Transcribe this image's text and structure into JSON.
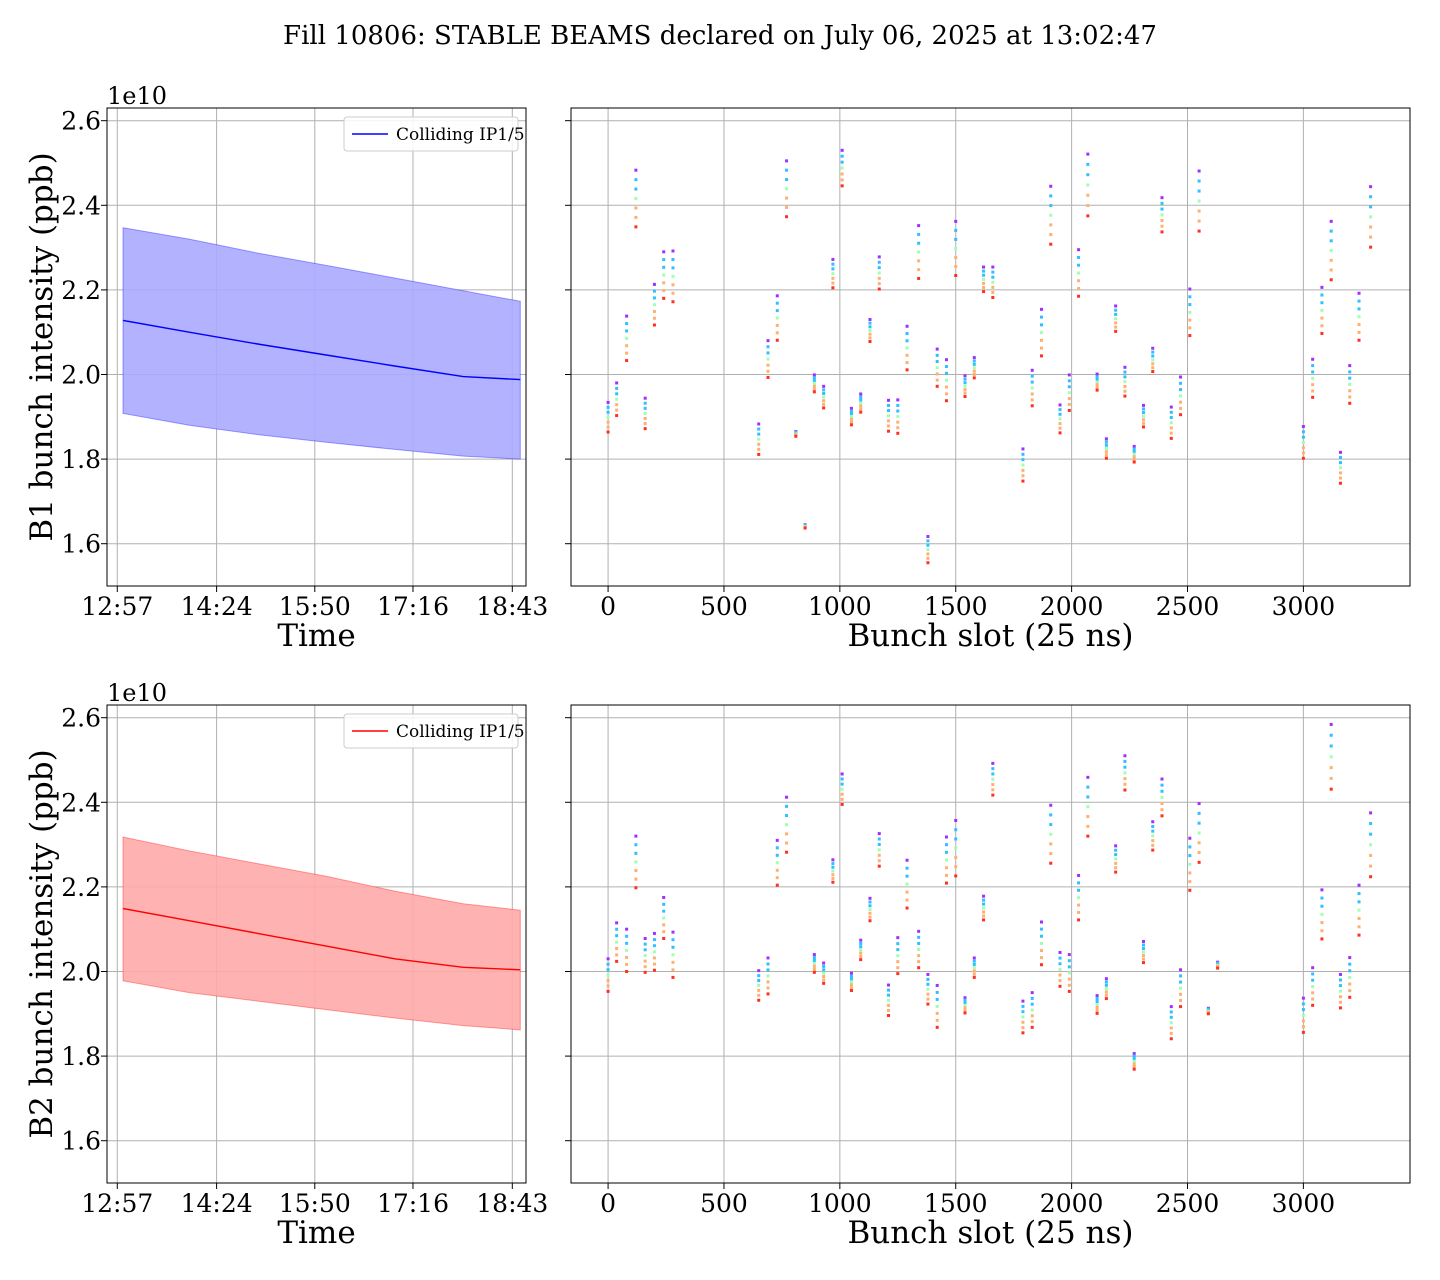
{
  "figure": {
    "title": "Fill 10806: STABLE BEAMS declared on July 06, 2025 at 13:02:47",
    "colors": {
      "b1": "#0000ff",
      "b1_fill": "#aaaaff",
      "b2": "#ff0000",
      "b2_fill": "#ffaaaa",
      "grid": "#b0b0b0"
    }
  },
  "chart_data": [
    {
      "id": "b1_time",
      "type": "area",
      "xlabel": "Time",
      "ylabel": "B1 bunch intensity (ppb)",
      "offset_text": "1e10",
      "xticks": [
        "12:57",
        "14:24",
        "15:50",
        "17:16",
        "18:43"
      ],
      "xlim": [
        "12:48",
        "18:55"
      ],
      "ylim": [
        1.5,
        2.63
      ],
      "yticks": [
        "1.6",
        "1.8",
        "2.0",
        "2.2",
        "2.4",
        "2.6"
      ],
      "legend": "Colliding IP1/5",
      "legend_position": "upper right",
      "x": [
        "13:02",
        "14:00",
        "15:00",
        "16:00",
        "17:00",
        "18:00",
        "18:50"
      ],
      "mean": [
        2.128,
        2.1,
        2.072,
        2.046,
        2.02,
        1.995,
        1.988
      ],
      "upper": [
        2.347,
        2.32,
        2.287,
        2.258,
        2.228,
        2.198,
        2.173
      ],
      "lower": [
        1.908,
        1.88,
        1.858,
        1.84,
        1.823,
        1.807,
        1.8
      ]
    },
    {
      "id": "b1_slot",
      "type": "scatter",
      "xlabel": "Bunch slot (25 ns)",
      "xlim": [
        -160,
        3460
      ],
      "ylim": [
        1.5,
        2.63
      ],
      "xticks": [
        "0",
        "500",
        "1000",
        "1500",
        "2000",
        "2500",
        "3000"
      ],
      "yticks": [
        "1.6",
        "1.8",
        "2.0",
        "2.2",
        "2.4",
        "2.6"
      ],
      "series_colors": [
        "#a030ff",
        "#30c0ff",
        "#a0ffb0",
        "#ffb070",
        "#ff3020"
      ],
      "points": [
        [
          0,
          1.934,
          1.864
        ],
        [
          37,
          1.98,
          1.903
        ],
        [
          80,
          2.138,
          2.033
        ],
        [
          120,
          2.483,
          2.349
        ],
        [
          160,
          1.944,
          1.872
        ],
        [
          200,
          2.213,
          2.117
        ],
        [
          240,
          2.29,
          2.18
        ],
        [
          280,
          2.292,
          2.172
        ],
        [
          650,
          1.883,
          1.811
        ],
        [
          690,
          2.08,
          1.993
        ],
        [
          730,
          2.186,
          2.081
        ],
        [
          770,
          2.505,
          2.373
        ],
        [
          810,
          1.865,
          1.854
        ],
        [
          850,
          1.645,
          1.637
        ],
        [
          890,
          1.999,
          1.959
        ],
        [
          930,
          1.972,
          1.921
        ],
        [
          970,
          2.272,
          2.205
        ],
        [
          1010,
          2.53,
          2.446
        ],
        [
          1050,
          1.92,
          1.881
        ],
        [
          1090,
          1.954,
          1.911
        ],
        [
          1130,
          2.13,
          2.078
        ],
        [
          1170,
          2.278,
          2.202
        ],
        [
          1210,
          1.939,
          1.866
        ],
        [
          1250,
          1.94,
          1.861
        ],
        [
          1290,
          2.114,
          2.011
        ],
        [
          1340,
          2.352,
          2.227
        ],
        [
          1380,
          1.617,
          1.555
        ],
        [
          1420,
          2.06,
          1.972
        ],
        [
          1460,
          2.035,
          1.938
        ],
        [
          1500,
          2.362,
          2.234
        ],
        [
          1540,
          1.997,
          1.948
        ],
        [
          1580,
          2.04,
          1.992
        ],
        [
          1620,
          2.254,
          2.196
        ],
        [
          1660,
          2.254,
          2.182
        ],
        [
          1790,
          1.824,
          1.748
        ],
        [
          1830,
          2.01,
          1.926
        ],
        [
          1870,
          2.154,
          2.044
        ],
        [
          1910,
          2.445,
          2.308
        ],
        [
          1950,
          1.928,
          1.862
        ],
        [
          1990,
          1.999,
          1.915
        ],
        [
          2030,
          2.295,
          2.185
        ],
        [
          2070,
          2.521,
          2.375
        ],
        [
          2110,
          2.001,
          1.963
        ],
        [
          2150,
          1.848,
          1.802
        ],
        [
          2190,
          2.162,
          2.102
        ],
        [
          2230,
          2.017,
          1.949
        ],
        [
          2270,
          1.83,
          1.793
        ],
        [
          2310,
          1.927,
          1.876
        ],
        [
          2350,
          2.062,
          2.007
        ],
        [
          2390,
          2.418,
          2.337
        ],
        [
          2430,
          1.923,
          1.849
        ],
        [
          2470,
          1.994,
          1.905
        ],
        [
          2510,
          2.202,
          2.092
        ],
        [
          2550,
          2.481,
          2.339
        ],
        [
          3000,
          1.877,
          1.802
        ],
        [
          3040,
          2.036,
          1.946
        ],
        [
          3080,
          2.206,
          2.097
        ],
        [
          3120,
          2.362,
          2.224
        ],
        [
          3160,
          1.816,
          1.743
        ],
        [
          3200,
          2.021,
          1.932
        ],
        [
          3240,
          2.192,
          2.081
        ],
        [
          3290,
          2.444,
          2.301
        ]
      ]
    },
    {
      "id": "b2_time",
      "type": "area",
      "xlabel": "Time",
      "ylabel": "B2 bunch intensity (ppb)",
      "offset_text": "1e10",
      "xticks": [
        "12:57",
        "14:24",
        "15:50",
        "17:16",
        "18:43"
      ],
      "xlim": [
        "12:48",
        "18:55"
      ],
      "ylim": [
        1.5,
        2.63
      ],
      "yticks": [
        "1.6",
        "1.8",
        "2.0",
        "2.2",
        "2.4",
        "2.6"
      ],
      "legend": "Colliding IP1/5",
      "legend_position": "upper right",
      "x": [
        "13:02",
        "14:00",
        "15:00",
        "16:00",
        "17:00",
        "18:00",
        "18:50"
      ],
      "mean": [
        2.149,
        2.12,
        2.09,
        2.06,
        2.03,
        2.01,
        2.004
      ],
      "upper": [
        2.318,
        2.285,
        2.255,
        2.225,
        2.19,
        2.16,
        2.145
      ],
      "lower": [
        1.978,
        1.95,
        1.93,
        1.91,
        1.89,
        1.872,
        1.862
      ]
    },
    {
      "id": "b2_slot",
      "type": "scatter",
      "xlabel": "Bunch slot (25 ns)",
      "xlim": [
        -160,
        3460
      ],
      "ylim": [
        1.5,
        2.63
      ],
      "xticks": [
        "0",
        "500",
        "1000",
        "1500",
        "2000",
        "2500",
        "3000"
      ],
      "yticks": [
        "1.6",
        "1.8",
        "2.0",
        "2.2",
        "2.4",
        "2.6"
      ],
      "series_colors": [
        "#a030ff",
        "#30c0ff",
        "#a0ffb0",
        "#ffb070",
        "#ff3020"
      ],
      "points": [
        [
          0,
          2.03,
          1.953
        ],
        [
          37,
          2.115,
          2.024
        ],
        [
          80,
          2.1,
          2.0
        ],
        [
          120,
          2.32,
          2.198
        ],
        [
          160,
          2.078,
          1.998
        ],
        [
          200,
          2.09,
          2.003
        ],
        [
          240,
          2.175,
          2.078
        ],
        [
          280,
          2.093,
          1.986
        ],
        [
          650,
          2.002,
          1.932
        ],
        [
          690,
          2.032,
          1.947
        ],
        [
          730,
          2.31,
          2.204
        ],
        [
          770,
          2.412,
          2.282
        ],
        [
          890,
          2.04,
          1.998
        ],
        [
          930,
          2.02,
          1.972
        ],
        [
          970,
          2.264,
          2.211
        ],
        [
          1010,
          2.467,
          2.395
        ],
        [
          1050,
          1.996,
          1.955
        ],
        [
          1090,
          2.074,
          2.028
        ],
        [
          1130,
          2.173,
          2.12
        ],
        [
          1170,
          2.326,
          2.249
        ],
        [
          1210,
          1.968,
          1.896
        ],
        [
          1250,
          2.08,
          1.995
        ],
        [
          1290,
          2.263,
          2.15
        ],
        [
          1340,
          2.095,
          2.009
        ],
        [
          1380,
          1.993,
          1.923
        ],
        [
          1420,
          1.967,
          1.868
        ],
        [
          1460,
          2.318,
          2.209
        ],
        [
          1500,
          2.357,
          2.226
        ],
        [
          1540,
          1.938,
          1.902
        ],
        [
          1580,
          2.032,
          1.986
        ],
        [
          1620,
          2.178,
          2.122
        ],
        [
          1660,
          2.492,
          2.417
        ],
        [
          1790,
          1.93,
          1.855
        ],
        [
          1830,
          1.95,
          1.868
        ],
        [
          1870,
          2.117,
          2.016
        ],
        [
          1910,
          2.393,
          2.256
        ],
        [
          1950,
          2.045,
          1.965
        ],
        [
          1990,
          2.04,
          1.953
        ],
        [
          2030,
          2.227,
          2.122
        ],
        [
          2070,
          2.459,
          2.32
        ],
        [
          2110,
          1.943,
          1.901
        ],
        [
          2150,
          1.983,
          1.936
        ],
        [
          2190,
          2.297,
          2.235
        ],
        [
          2230,
          2.51,
          2.429
        ],
        [
          2270,
          1.806,
          1.769
        ],
        [
          2310,
          2.071,
          2.021
        ],
        [
          2350,
          2.354,
          2.287
        ],
        [
          2390,
          2.455,
          2.368
        ],
        [
          2430,
          1.917,
          1.841
        ],
        [
          2470,
          2.004,
          1.917
        ],
        [
          2510,
          2.315,
          2.192
        ],
        [
          2550,
          2.397,
          2.258
        ],
        [
          2590,
          1.913,
          1.9
        ],
        [
          2630,
          2.022,
          2.008
        ],
        [
          3000,
          1.937,
          1.856
        ],
        [
          3040,
          2.009,
          1.92
        ],
        [
          3080,
          2.193,
          2.077
        ],
        [
          3120,
          2.584,
          2.431
        ],
        [
          3160,
          1.993,
          1.914
        ],
        [
          3200,
          2.033,
          1.939
        ],
        [
          3240,
          2.204,
          2.086
        ],
        [
          3290,
          2.375,
          2.224
        ]
      ]
    }
  ]
}
